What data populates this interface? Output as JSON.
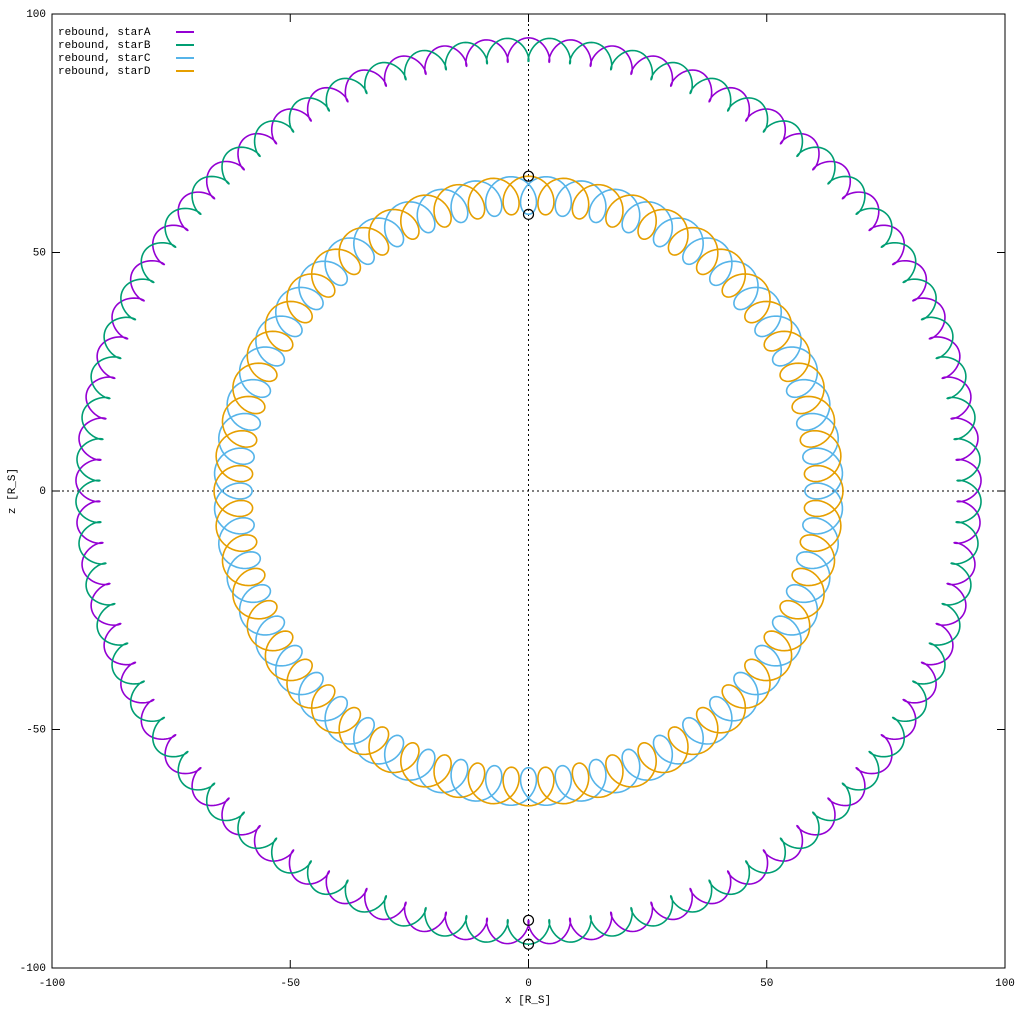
{
  "chart_data": {
    "type": "orbit",
    "xlabel": "x [R_S]",
    "ylabel": "z [R_S]",
    "xlim": [
      -100,
      100
    ],
    "ylim": [
      -100,
      100
    ],
    "xticks": [
      -100,
      -50,
      0,
      50,
      100
    ],
    "yticks": [
      -100,
      -50,
      0,
      50,
      100
    ],
    "zero_axes": true,
    "legend": "top-left",
    "series": [
      {
        "name": "rebound, starA",
        "color": "#9400d3",
        "radius": 92.5,
        "loop_radius": 2.5,
        "loop_width": 1.6,
        "loops": 65,
        "phase": 0
      },
      {
        "name": "rebound, starB",
        "color": "#009e73",
        "radius": 92.5,
        "loop_radius": 2.5,
        "loop_width": 1.6,
        "loops": 65,
        "phase": 180
      },
      {
        "name": "rebound, starC",
        "color": "#56b4e9",
        "radius": 62,
        "loop_radius": 4,
        "loop_width": 3.3,
        "loops": 52,
        "phase": 180
      },
      {
        "name": "rebound, starD",
        "color": "#e69f00",
        "radius": 62,
        "loop_radius": 4,
        "loop_width": 3.3,
        "loops": 52,
        "phase": 0
      }
    ],
    "markers": {
      "x": [
        0,
        0,
        0,
        0
      ],
      "y": [
        66,
        58,
        -90,
        -95
      ]
    }
  }
}
